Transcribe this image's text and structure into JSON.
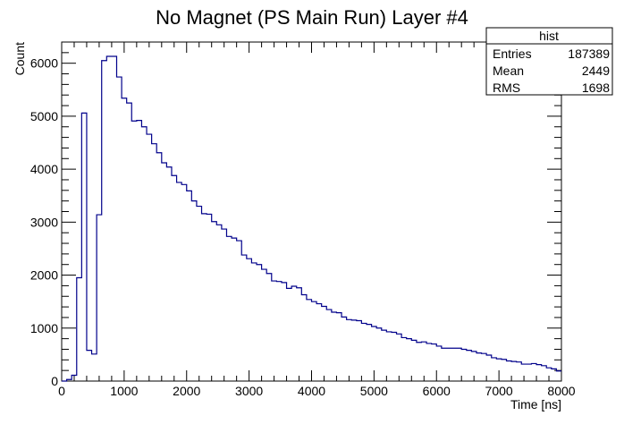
{
  "chart_data": {
    "type": "histogram",
    "title": "No Magnet (PS Main Run) Layer #4",
    "xlabel": "Time [ns]",
    "ylabel": "Count",
    "xlim": [
      0,
      8000
    ],
    "ylim": [
      0,
      6400
    ],
    "bin_width": 80,
    "x_ticks": [
      0,
      1000,
      2000,
      3000,
      4000,
      5000,
      6000,
      7000,
      8000
    ],
    "y_ticks": [
      0,
      1000,
      2000,
      3000,
      4000,
      5000,
      6000
    ],
    "line_color": "#00008b",
    "grid": false,
    "values": [
      0,
      30,
      110,
      1950,
      5060,
      580,
      510,
      3140,
      6050,
      6130,
      6130,
      5740,
      5340,
      5250,
      4910,
      4920,
      4800,
      4660,
      4480,
      4310,
      4120,
      4040,
      3880,
      3750,
      3710,
      3590,
      3400,
      3300,
      3160,
      3150,
      3010,
      2950,
      2870,
      2730,
      2700,
      2650,
      2380,
      2310,
      2230,
      2200,
      2110,
      2030,
      1890,
      1880,
      1860,
      1750,
      1790,
      1760,
      1630,
      1540,
      1500,
      1460,
      1410,
      1350,
      1300,
      1290,
      1210,
      1160,
      1150,
      1140,
      1090,
      1070,
      1030,
      1000,
      960,
      930,
      920,
      890,
      820,
      800,
      770,
      730,
      740,
      710,
      700,
      660,
      620,
      620,
      620,
      620,
      600,
      580,
      560,
      530,
      520,
      490,
      440,
      420,
      410,
      380,
      370,
      360,
      320,
      320,
      330,
      310,
      290,
      250,
      230,
      190
    ],
    "stats_box": {
      "title": "hist",
      "rows": [
        {
          "label": "Entries",
          "value": "187389"
        },
        {
          "label": "Mean",
          "value": "2449"
        },
        {
          "label": "RMS",
          "value": "1698"
        }
      ]
    }
  }
}
